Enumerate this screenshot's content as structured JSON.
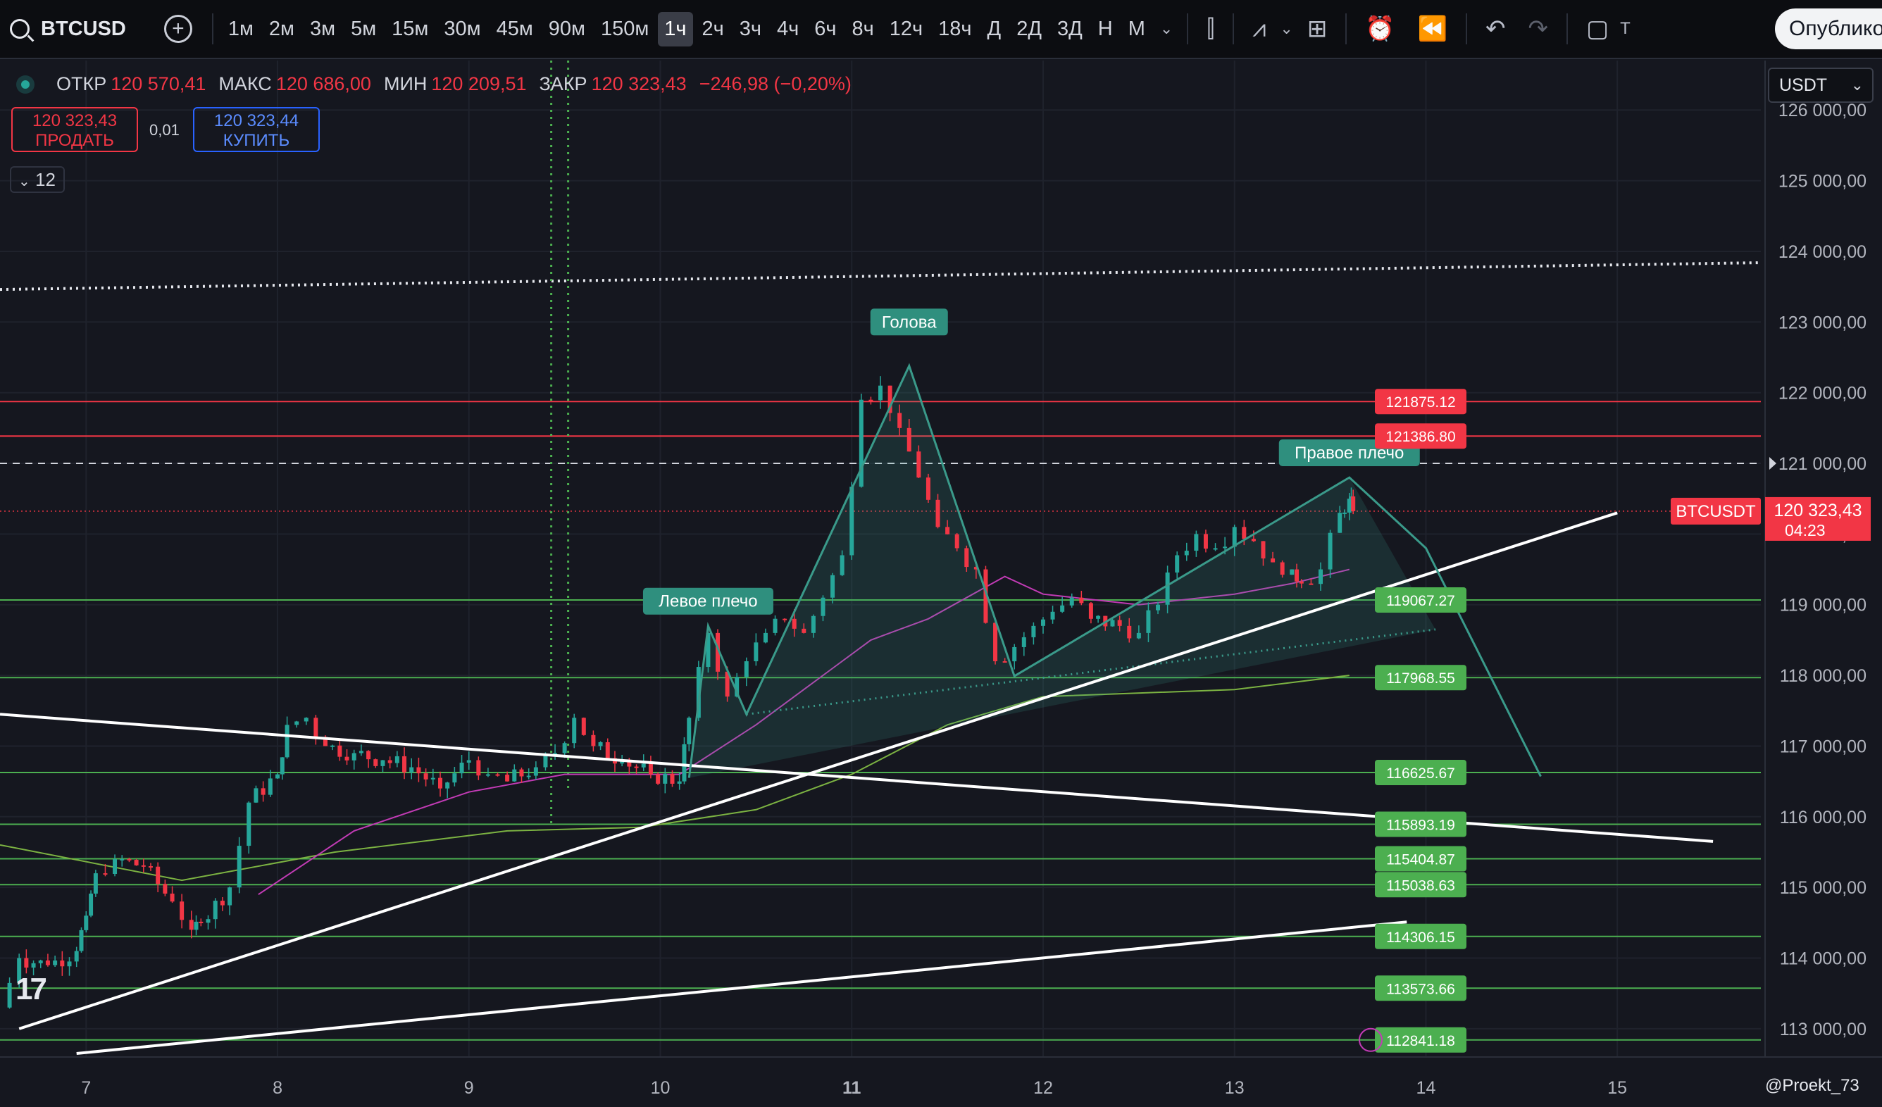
{
  "toolbar": {
    "symbol": "BTCUSD",
    "timeframes": [
      "1м",
      "2м",
      "3м",
      "5м",
      "15м",
      "30м",
      "45м",
      "90м",
      "150м",
      "1ч",
      "2ч",
      "3ч",
      "4ч",
      "6ч",
      "8ч",
      "12ч",
      "18ч",
      "Д",
      "2Д",
      "3Д",
      "Н",
      "М"
    ],
    "active_timeframe": "1ч",
    "publish_label": "Опублико",
    "tb_letter": "Т"
  },
  "legend": {
    "open_label": "ОТКР",
    "open_value": "120 570,41",
    "high_label": "МАКС",
    "high_value": "120 686,00",
    "low_label": "МИН",
    "low_value": "120 209,51",
    "close_label": "ЗАКР",
    "close_value": "120 323,43",
    "change": "−246,98 (−0,20%)"
  },
  "trade": {
    "sell_price": "120 323,43",
    "sell_label": "ПРОДАТЬ",
    "spread": "0,01",
    "buy_price": "120 323,44",
    "buy_label": "КУПИТЬ",
    "collapse_count": "12"
  },
  "currency": "USDT",
  "price_badge": {
    "symbol": "BTCUSDT",
    "price": "120 323,43",
    "countdown": "04:23"
  },
  "author": "@Proekt_73",
  "colors": {
    "background": "#15171f",
    "up": "#26a69a",
    "down": "#f23645",
    "support": "#4caf50",
    "resistance": "#f23645",
    "pattern": "#3a9a8a",
    "ma_fast": "#c23bb5",
    "ma_slow": "#7cb342"
  },
  "chart_data": {
    "type": "candlestick",
    "symbol": "BTCUSD",
    "timeframe": "1ч",
    "ylim": [
      112600,
      126700
    ],
    "xlim": [
      6.55,
      15.75
    ],
    "y_ticks": [
      {
        "value": 113000,
        "label": "113 000,00"
      },
      {
        "value": 114000,
        "label": "114 000,00"
      },
      {
        "value": 115000,
        "label": "115 000,00"
      },
      {
        "value": 116000,
        "label": "116 000,00"
      },
      {
        "value": 117000,
        "label": "117 000,00"
      },
      {
        "value": 118000,
        "label": "118 000,00"
      },
      {
        "value": 119000,
        "label": "119 000,00"
      },
      {
        "value": 120000,
        "label": "120 000,00"
      },
      {
        "value": 121000,
        "label": "121 000,00"
      },
      {
        "value": 122000,
        "label": "122 000,00"
      },
      {
        "value": 123000,
        "label": "123 000,00"
      },
      {
        "value": 124000,
        "label": "124 000,00"
      },
      {
        "value": 125000,
        "label": "125 000,00"
      },
      {
        "value": 126000,
        "label": "126 000,00"
      }
    ],
    "x_ticks": [
      {
        "value": 7,
        "label": "7"
      },
      {
        "value": 8,
        "label": "8"
      },
      {
        "value": 9,
        "label": "9"
      },
      {
        "value": 10,
        "label": "10"
      },
      {
        "value": 11,
        "label": "11",
        "bold": true
      },
      {
        "value": 12,
        "label": "12"
      },
      {
        "value": 13,
        "label": "13"
      },
      {
        "value": 14,
        "label": "14"
      },
      {
        "value": 15,
        "label": "15"
      }
    ],
    "price_path": [
      [
        6.55,
        113300
      ],
      [
        6.65,
        114000
      ],
      [
        6.8,
        113900
      ],
      [
        6.95,
        114100
      ],
      [
        7.0,
        114600
      ],
      [
        7.05,
        115200
      ],
      [
        7.15,
        115400
      ],
      [
        7.3,
        115300
      ],
      [
        7.45,
        114800
      ],
      [
        7.55,
        114400
      ],
      [
        7.6,
        114500
      ],
      [
        7.75,
        115000
      ],
      [
        7.85,
        116200
      ],
      [
        8.0,
        116600
      ],
      [
        8.05,
        117300
      ],
      [
        8.15,
        117400
      ],
      [
        8.25,
        117000
      ],
      [
        8.4,
        116900
      ],
      [
        8.55,
        116800
      ],
      [
        8.7,
        116700
      ],
      [
        8.85,
        116400
      ],
      [
        9.0,
        116800
      ],
      [
        9.1,
        116600
      ],
      [
        9.2,
        116500
      ],
      [
        9.35,
        116700
      ],
      [
        9.45,
        116900
      ],
      [
        9.55,
        117400
      ],
      [
        9.65,
        117000
      ],
      [
        9.8,
        116800
      ],
      [
        9.95,
        116600
      ],
      [
        10.1,
        116500
      ],
      [
        10.15,
        117400
      ],
      [
        10.25,
        118600
      ],
      [
        10.35,
        117700
      ],
      [
        10.45,
        118200
      ],
      [
        10.55,
        118600
      ],
      [
        10.65,
        118800
      ],
      [
        10.75,
        118600
      ],
      [
        10.85,
        119100
      ],
      [
        10.95,
        119700
      ],
      [
        11.05,
        121900
      ],
      [
        11.15,
        122100
      ],
      [
        11.25,
        121500
      ],
      [
        11.35,
        120800
      ],
      [
        11.45,
        120100
      ],
      [
        11.55,
        119800
      ],
      [
        11.65,
        119500
      ],
      [
        11.75,
        118200
      ],
      [
        11.85,
        118400
      ],
      [
        11.95,
        118700
      ],
      [
        12.05,
        118900
      ],
      [
        12.15,
        119100
      ],
      [
        12.25,
        118800
      ],
      [
        12.4,
        118700
      ],
      [
        12.5,
        118600
      ],
      [
        12.6,
        119000
      ],
      [
        12.7,
        119700
      ],
      [
        12.8,
        120000
      ],
      [
        12.9,
        119800
      ],
      [
        13.0,
        120100
      ],
      [
        13.1,
        119900
      ],
      [
        13.2,
        119600
      ],
      [
        13.3,
        119500
      ],
      [
        13.35,
        119300
      ],
      [
        13.45,
        119500
      ],
      [
        13.55,
        120300
      ],
      [
        13.6,
        120500
      ],
      [
        13.62,
        120323
      ]
    ],
    "levels_support": [
      {
        "price": 119067.27,
        "label": "119067.27"
      },
      {
        "price": 117968.55,
        "label": "117968.55"
      },
      {
        "price": 116625.67,
        "label": "116625.67"
      },
      {
        "price": 115893.19,
        "label": "115893.19"
      },
      {
        "price": 115404.87,
        "label": "115404.87"
      },
      {
        "price": 115038.63,
        "label": "115038.63"
      },
      {
        "price": 114306.15,
        "label": "114306.15"
      },
      {
        "price": 113573.66,
        "label": "113573.66"
      },
      {
        "price": 112841.18,
        "label": "112841.18"
      }
    ],
    "levels_resistance": [
      {
        "price": 121875.12,
        "label": "121875.12"
      },
      {
        "price": 121386.8,
        "label": "121386.80"
      }
    ],
    "dashed_level": 121000,
    "dotted_line": [
      [
        6.55,
        123460
      ],
      [
        15.75,
        123840
      ]
    ],
    "dotted_vline": 9.43,
    "current_price": 120323.43,
    "trendlines": [
      [
        [
          6.65,
          113000
        ],
        [
          15.0,
          120300
        ]
      ],
      [
        [
          6.55,
          117450
        ],
        [
          15.5,
          115650
        ]
      ],
      [
        [
          6.95,
          112650
        ],
        [
          13.9,
          114510
        ]
      ]
    ],
    "head_shoulders": {
      "points": [
        [
          10.15,
          116550
        ],
        [
          10.25,
          118700
        ],
        [
          10.45,
          117450
        ],
        [
          11.3,
          122380
        ],
        [
          11.85,
          117990
        ],
        [
          13.6,
          120800
        ],
        [
          14.0,
          119800
        ],
        [
          14.6,
          116570
        ]
      ],
      "neckline": [
        [
          10.45,
          117450
        ],
        [
          14.05,
          118650
        ]
      ],
      "labels": [
        {
          "text": "Левое плечо",
          "at": [
            10.25,
            119050
          ]
        },
        {
          "text": "Голова",
          "at": [
            11.3,
            123000
          ]
        },
        {
          "text": "Правое плечо",
          "at": [
            13.6,
            121150
          ]
        }
      ]
    },
    "ma_fast": [
      [
        7.9,
        114900
      ],
      [
        8.4,
        115800
      ],
      [
        9.0,
        116350
      ],
      [
        9.5,
        116600
      ],
      [
        10.1,
        116600
      ],
      [
        10.5,
        117300
      ],
      [
        10.9,
        118100
      ],
      [
        11.1,
        118500
      ],
      [
        11.4,
        118800
      ],
      [
        11.8,
        119400
      ],
      [
        12.0,
        119150
      ],
      [
        12.5,
        119000
      ],
      [
        13.0,
        119150
      ],
      [
        13.3,
        119300
      ],
      [
        13.6,
        119500
      ]
    ],
    "ma_slow": [
      [
        6.55,
        115600
      ],
      [
        7.5,
        115100
      ],
      [
        8.3,
        115500
      ],
      [
        9.2,
        115800
      ],
      [
        9.9,
        115850
      ],
      [
        10.5,
        116100
      ],
      [
        11.0,
        116600
      ],
      [
        11.5,
        117300
      ],
      [
        12.0,
        117700
      ],
      [
        13.0,
        117800
      ],
      [
        13.6,
        118000
      ]
    ]
  }
}
